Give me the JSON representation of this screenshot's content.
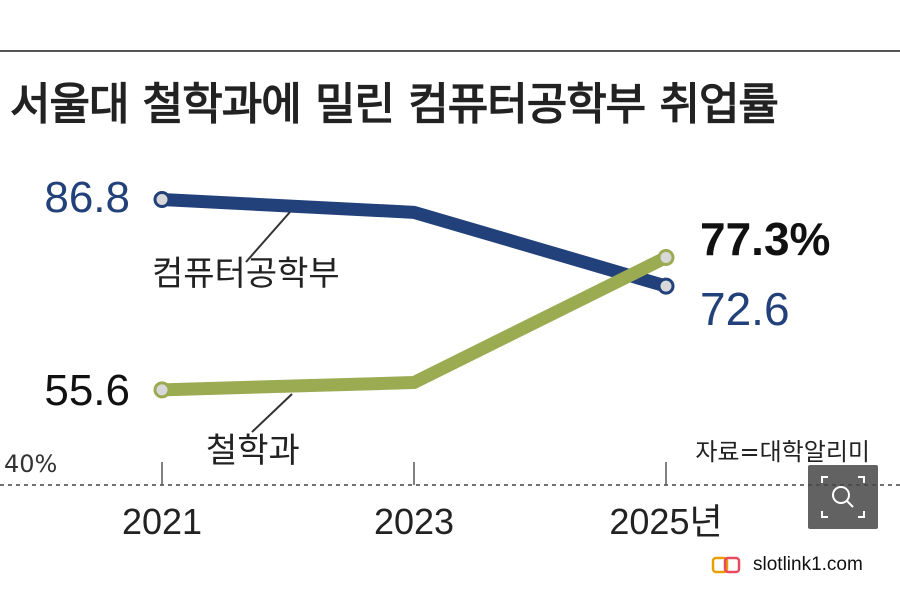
{
  "title": "서울대 철학과에 밀린 컴퓨터공학부 취업률",
  "source": "자료=대학알리미",
  "watermark": {
    "text": "slotlink1.com",
    "logo": "slotlink-logo-icon"
  },
  "zoom": {
    "icon": "search-icon"
  },
  "chart_data": {
    "type": "line",
    "x": [
      "2021",
      "2023",
      "2025"
    ],
    "x_suffix": "년",
    "baseline_label": "40%",
    "ylim": [
      40,
      90
    ],
    "series": [
      {
        "name": "컴퓨터공학부",
        "color": "#22407a",
        "values": [
          86.8,
          84.7,
          72.6
        ],
        "labels": [
          "86.8",
          "",
          "72.6"
        ]
      },
      {
        "name": "철학과",
        "color": "#9bab52",
        "values": [
          55.6,
          56.8,
          77.3
        ],
        "labels": [
          "55.6",
          "",
          "77.3%"
        ]
      }
    ]
  }
}
